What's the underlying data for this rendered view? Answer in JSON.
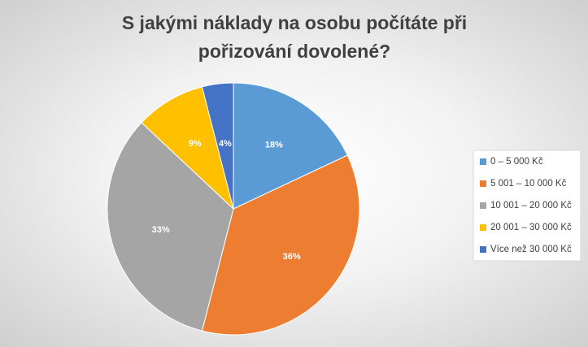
{
  "chart_data": {
    "type": "pie",
    "title": "S jakými náklady na osobu počítáte při pořizování dovolené?",
    "categories": [
      "0 – 5 000 Kč",
      "5 001 – 10 000 Kč",
      "10 001 – 20 000 Kč",
      "20 001 – 30 000 Kč",
      "Více než 30 000 Kč"
    ],
    "values": [
      18,
      36,
      33,
      9,
      4
    ],
    "value_labels": [
      "18%",
      "36%",
      "33%",
      "9%",
      "4%"
    ],
    "colors": [
      "#5b9bd5",
      "#ed7d31",
      "#a5a5a5",
      "#ffc000",
      "#4472c4"
    ],
    "legend": "right"
  }
}
